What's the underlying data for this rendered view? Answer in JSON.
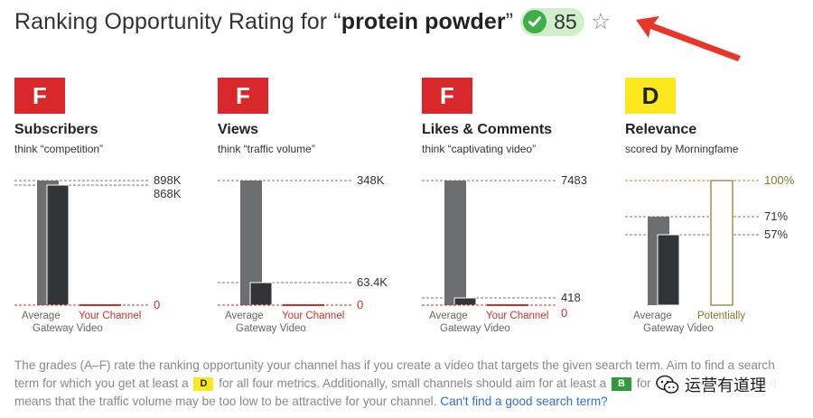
{
  "header": {
    "title_prefix": "Ranking Opportunity Rating for “",
    "keyword": "protein powder",
    "title_suffix": "”",
    "score": "85",
    "check_icon": "check-circle-icon",
    "star_icon": "star-outline-icon",
    "colors": {
      "pill": "#cfeec9",
      "check": "#3fae49"
    }
  },
  "annotation": {
    "arrow_color": "#e8362a"
  },
  "metrics": [
    {
      "grade": "F",
      "name": "Subscribers",
      "subtitle": "think “competition”",
      "labels": [
        "898K",
        "868K",
        "0"
      ],
      "bars": {
        "back": "Average",
        "back2": "Gateway Video",
        "front": "Your Channel"
      }
    },
    {
      "grade": "F",
      "name": "Views",
      "subtitle": "think “traffic volume”",
      "labels": [
        "348K",
        "63.4K",
        "0"
      ],
      "bars": {
        "back": "Average",
        "back2": "Gateway Video",
        "front": "Your Channel"
      }
    },
    {
      "grade": "F",
      "name": "Likes & Comments",
      "subtitle": "think “captivating video”",
      "labels": [
        "7483",
        "418",
        "0"
      ],
      "bars": {
        "back": "Average",
        "back2": "Gateway Video",
        "front": "Your Channel"
      }
    },
    {
      "grade": "D",
      "name": "Relevance",
      "subtitle": "scored by Morningfame",
      "labels": [
        "100%",
        "71%",
        "57%"
      ],
      "bars": {
        "back": "Average",
        "back2": "Gateway Video",
        "front": "Potentially"
      }
    }
  ],
  "chart_data": [
    {
      "type": "bar",
      "title": "Subscribers",
      "categories": [
        "Average",
        "Gateway Video",
        "Your Channel"
      ],
      "values": [
        898000,
        868000,
        0
      ],
      "ylim": [
        0,
        898000
      ]
    },
    {
      "type": "bar",
      "title": "Views",
      "categories": [
        "Average",
        "Gateway Video",
        "Your Channel"
      ],
      "values": [
        348000,
        63400,
        0
      ],
      "ylim": [
        0,
        348000
      ]
    },
    {
      "type": "bar",
      "title": "Likes & Comments",
      "categories": [
        "Average",
        "Gateway Video",
        "Your Channel"
      ],
      "values": [
        7483,
        418,
        0
      ],
      "ylim": [
        0,
        7483
      ]
    },
    {
      "type": "bar",
      "title": "Relevance",
      "categories": [
        "Average",
        "Gateway Video",
        "Potentially"
      ],
      "values": [
        71,
        57,
        100
      ],
      "ylim": [
        0,
        100
      ]
    }
  ],
  "description": {
    "p1": "The grades (A–F) rate the ranking opportunity your channel has if you create a video that targets the given search term. Aim to find a search term for which you get at least a",
    "badge1": "D",
    "p2": "for all four metrics. Additionally, small channels should aim for at least a",
    "badge2": "B",
    "p3": "for relevance, otherwise it means that the traffic volume may be too low to be attractive for your channel.",
    "link": "Can't find a good search term?"
  },
  "watermark": {
    "text": "运营有道理",
    "icon": "wechat-icon"
  }
}
